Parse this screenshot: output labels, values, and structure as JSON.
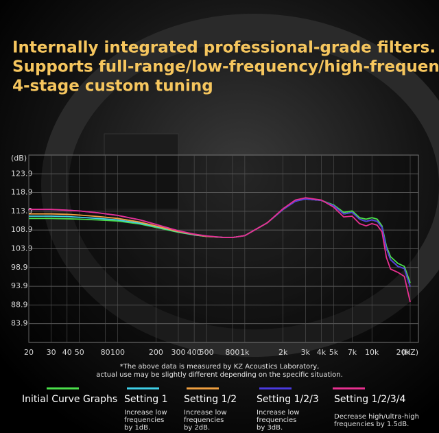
{
  "chart_data": {
    "type": "line",
    "title_lines": [
      "Internally integrated professional-grade filters.",
      "Supports full-range/low-frequency/high-frequency",
      "4-stage custom tuning"
    ],
    "y_label": "(dB)",
    "x_label": "(HZ)",
    "xscale": "log",
    "grid": true,
    "xlim": [
      20,
      20000
    ],
    "ylim": [
      78.9,
      128.9
    ],
    "xticks": [
      20,
      30,
      40,
      50,
      80,
      100,
      200,
      300,
      400,
      500,
      800,
      {
        "value": 1000,
        "label": "1k"
      },
      {
        "value": 2000,
        "label": "2k"
      },
      {
        "value": 3000,
        "label": "3k"
      },
      {
        "value": 4000,
        "label": "4k"
      },
      {
        "value": 5000,
        "label": "5k"
      },
      {
        "value": 7000,
        "label": "7k"
      },
      {
        "value": 10000,
        "label": "10k"
      },
      {
        "value": 20000,
        "label": "20k"
      }
    ],
    "yticks": [
      123.9,
      118.9,
      113.9,
      108.9,
      103.9,
      98.9,
      93.9,
      88.9,
      83.9
    ],
    "x": [
      20,
      30,
      40,
      50,
      70,
      100,
      150,
      200,
      300,
      400,
      500,
      700,
      800,
      1000,
      1500,
      2000,
      2500,
      3000,
      4000,
      5000,
      6000,
      7000,
      8000,
      9000,
      10000,
      11000,
      12000,
      13000,
      14000,
      16000,
      18000,
      20000
    ],
    "series": [
      {
        "name": "Initial Curve Graphs",
        "color": "#4be04b",
        "description": [],
        "values": [
          112.0,
          112.0,
          111.9,
          111.8,
          111.6,
          111.3,
          110.5,
          109.6,
          108.3,
          107.6,
          107.2,
          106.9,
          106.9,
          107.4,
          110.8,
          114.4,
          116.6,
          117.2,
          116.8,
          115.6,
          113.6,
          114.0,
          112.2,
          111.8,
          112.2,
          111.8,
          110.0,
          104.6,
          101.8,
          100.0,
          99.2,
          94.8
        ]
      },
      {
        "name": "Setting 1",
        "color": "#3fd0e8",
        "description": [
          "Increase low",
          "frequencies",
          "by 1dB."
        ],
        "values": [
          112.6,
          112.6,
          112.5,
          112.3,
          112.0,
          111.6,
          110.7,
          109.8,
          108.4,
          107.6,
          107.2,
          106.9,
          106.9,
          107.4,
          110.8,
          114.4,
          116.6,
          117.2,
          116.8,
          115.4,
          113.2,
          113.6,
          111.8,
          111.2,
          111.6,
          111.2,
          109.6,
          104.0,
          101.0,
          99.2,
          98.6,
          93.8
        ]
      },
      {
        "name": "Setting 1/2",
        "color": "#f0a040",
        "description": [
          "Increase low",
          "frequencies",
          "by 2dB."
        ],
        "values": [
          113.2,
          113.2,
          113.1,
          112.9,
          112.5,
          112.0,
          111.0,
          110.0,
          108.5,
          107.7,
          107.2,
          106.9,
          106.9,
          107.4,
          110.8,
          114.4,
          116.6,
          117.2,
          116.8,
          115.4,
          113.2,
          113.6,
          111.8,
          111.2,
          111.6,
          111.2,
          109.6,
          104.0,
          101.0,
          99.2,
          98.6,
          93.8
        ]
      },
      {
        "name": "Setting 1/2/3",
        "color": "#4a3ae0",
        "description": [
          "Increase low",
          "frequencies",
          "by 3dB."
        ],
        "values": [
          114.4,
          114.4,
          114.2,
          114.0,
          113.5,
          112.8,
          111.6,
          110.4,
          108.7,
          107.8,
          107.3,
          106.9,
          106.9,
          107.4,
          110.8,
          114.4,
          116.6,
          117.2,
          116.8,
          115.4,
          113.2,
          113.6,
          111.8,
          111.2,
          111.6,
          111.2,
          109.6,
          104.0,
          101.0,
          99.2,
          98.6,
          93.8
        ]
      },
      {
        "name": "Setting 1/2/3/4",
        "color": "#e83090",
        "description": [
          "Decrease high/ultra-high",
          "frequencies by 1.5dB."
        ],
        "values": [
          114.4,
          114.4,
          114.2,
          114.0,
          113.5,
          112.8,
          111.6,
          110.4,
          108.7,
          107.8,
          107.3,
          106.9,
          106.9,
          107.4,
          110.8,
          114.6,
          116.9,
          117.5,
          116.9,
          115.0,
          112.4,
          112.6,
          110.6,
          110.0,
          110.6,
          110.2,
          108.4,
          101.6,
          98.5,
          97.6,
          96.5,
          89.7
        ]
      }
    ],
    "notes": [
      "*The above data is measured by KZ Acoustics Laboratory,",
      "actual use may be slightly different depending on the specific situation."
    ]
  }
}
